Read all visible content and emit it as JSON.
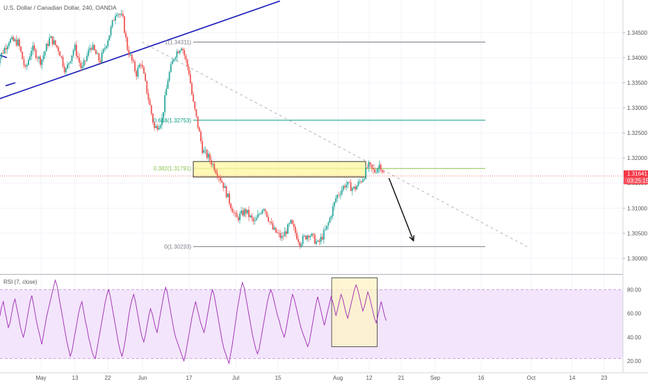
{
  "chart_data": {
    "type": "candlestick",
    "title": "U.S. Dollar / Canadian Dollar, 240, OANDA",
    "x_axis": {
      "labels": [
        "May",
        "13",
        "22",
        "Jun",
        "17",
        "Jul",
        "15",
        "Aug",
        "12",
        "21",
        "Sep",
        "16",
        "Oct",
        "14",
        "23"
      ]
    },
    "price_axis": {
      "ticks": [
        "1.34500",
        "1.34000",
        "1.33500",
        "1.33000",
        "1.32500",
        "1.32000",
        "1.31500",
        "1.31000",
        "1.30500",
        "1.30000"
      ],
      "tick_values": [
        1.345,
        1.34,
        1.335,
        1.33,
        1.325,
        1.32,
        1.315,
        1.31,
        1.305,
        1.3
      ],
      "range": [
        1.297,
        1.3515
      ]
    },
    "current_price": {
      "label": "1.31641",
      "value": 1.31641,
      "countdown": "03:25:15",
      "color": "#f23645"
    },
    "fib_levels": [
      {
        "ratio": 1,
        "price": 1.34311,
        "label": "1(1.34311)",
        "color": "#787b86"
      },
      {
        "ratio": 0.618,
        "price": 1.32753,
        "label": "0.618(1.32753)",
        "color": "#089981"
      },
      {
        "ratio": 0.382,
        "price": 1.31791,
        "label": "0.382(1.31791)",
        "color": "#8bc34a"
      },
      {
        "ratio": 0,
        "price": 1.30233,
        "label": "0(1.30233)",
        "color": "#787b86"
      }
    ],
    "resistance_zone": {
      "price_top": 1.3193,
      "price_bottom": 1.3162,
      "color": "#fff59d"
    },
    "price_path": [
      [
        -0.5,
        1.3384
      ],
      [
        0.3,
        1.3412
      ],
      [
        1.0,
        1.3435
      ],
      [
        2.0,
        1.343
      ],
      [
        2.8,
        1.3375
      ],
      [
        3.5,
        1.342
      ],
      [
        4.5,
        1.3392
      ],
      [
        5.5,
        1.344
      ],
      [
        6.5,
        1.3415
      ],
      [
        7.2,
        1.3372
      ],
      [
        8.2,
        1.3422
      ],
      [
        9.0,
        1.3375
      ],
      [
        10.0,
        1.3425
      ],
      [
        11.0,
        1.3392
      ],
      [
        12.0,
        1.3445
      ],
      [
        12.8,
        1.3495
      ],
      [
        13.5,
        1.3478
      ],
      [
        14.0,
        1.342
      ],
      [
        15.0,
        1.3368
      ],
      [
        15.5,
        1.3392
      ],
      [
        16.2,
        1.333
      ],
      [
        17.0,
        1.3258
      ],
      [
        17.8,
        1.3275
      ],
      [
        18.5,
        1.336
      ],
      [
        19.2,
        1.3405
      ],
      [
        20.0,
        1.3425
      ],
      [
        20.8,
        1.337
      ],
      [
        21.2,
        1.3315
      ],
      [
        21.8,
        1.3262
      ],
      [
        22.3,
        1.3215
      ],
      [
        23.0,
        1.32
      ],
      [
        23.7,
        1.3178
      ],
      [
        24.5,
        1.315
      ],
      [
        25.2,
        1.3115
      ],
      [
        26.0,
        1.3078
      ],
      [
        27.0,
        1.3095
      ],
      [
        28.0,
        1.307
      ],
      [
        29.0,
        1.3105
      ],
      [
        30.0,
        1.3058
      ],
      [
        31.0,
        1.304
      ],
      [
        32.0,
        1.307
      ],
      [
        33.0,
        1.3032
      ],
      [
        34.0,
        1.305
      ],
      [
        35.0,
        1.3028
      ],
      [
        36.0,
        1.3062
      ],
      [
        37.0,
        1.3122
      ],
      [
        38.0,
        1.3148
      ],
      [
        39.0,
        1.3138
      ],
      [
        40.0,
        1.3162
      ],
      [
        40.5,
        1.3185
      ],
      [
        41.2,
        1.3172
      ],
      [
        41.8,
        1.3188
      ],
      [
        42.3,
        1.3166
      ]
    ],
    "projection": {
      "start": [
        42.8,
        1.316
      ],
      "end": [
        45.5,
        1.3035
      ]
    },
    "trendline_start": [
      -4.5,
      1.329
    ],
    "trendline_end": [
      30.8,
      1.3513
    ],
    "fib_connector_start": [
      15.6,
      1.34311
    ],
    "fib_connector_end": [
      58.0,
      1.30233
    ],
    "rsi": {
      "label": "RSI (7, close)",
      "ticks": [
        "80.00",
        "60.00",
        "40.00",
        "20.00"
      ],
      "tick_values": [
        80,
        60,
        40,
        20
      ],
      "range": [
        10,
        92
      ],
      "band": [
        22,
        80
      ],
      "band_color": "#f3e5fc",
      "line_color": "#9c27b0",
      "highlight": {
        "x0": 36.5,
        "x1": 41.5,
        "top": 90,
        "bottom": 32,
        "color": "#fff3c4"
      },
      "values": [
        58,
        66,
        70,
        62,
        55,
        48,
        52,
        60,
        68,
        72,
        65,
        58,
        50,
        44,
        40,
        46,
        54,
        62,
        70,
        75,
        68,
        60,
        52,
        46,
        40,
        34,
        42,
        50,
        58,
        64,
        70,
        76,
        82,
        88,
        84,
        76,
        68,
        60,
        52,
        44,
        36,
        30,
        24,
        28,
        36,
        44,
        52,
        60,
        66,
        70,
        62,
        54,
        48,
        40,
        34,
        28,
        24,
        22,
        30,
        38,
        46,
        54,
        62,
        70,
        76,
        80,
        74,
        66,
        58,
        50,
        42,
        34,
        28,
        24,
        30,
        38,
        48,
        58,
        66,
        72,
        76,
        70,
        62,
        54,
        46,
        40,
        36,
        42,
        50,
        58,
        64,
        60,
        54,
        48,
        44,
        52,
        60,
        68,
        76,
        82,
        78,
        70,
        62,
        54,
        46,
        40,
        36,
        32,
        28,
        24,
        20,
        26,
        34,
        42,
        50,
        58,
        64,
        70,
        64,
        58,
        52,
        48,
        44,
        50,
        58,
        66,
        74,
        80,
        76,
        68,
        60,
        52,
        44,
        36,
        30,
        26,
        22,
        18,
        26,
        34,
        44,
        54,
        64,
        72,
        80,
        86,
        82,
        74,
        66,
        58,
        50,
        42,
        36,
        30,
        26,
        30,
        38,
        46,
        54,
        62,
        70,
        76,
        80,
        76,
        70,
        64,
        58,
        54,
        48,
        44,
        40,
        46,
        54,
        62,
        70,
        76,
        72,
        66,
        60,
        54,
        48,
        44,
        40,
        36,
        32,
        36,
        44,
        52,
        60,
        68,
        74,
        68,
        62,
        56,
        50,
        56,
        62,
        68,
        74,
        70,
        64,
        58,
        64,
        70,
        76,
        72,
        66,
        60,
        56,
        62,
        68,
        74,
        80,
        84,
        80,
        74,
        68,
        62,
        66,
        72,
        78,
        74,
        68,
        62,
        56,
        52,
        58,
        64,
        70,
        64,
        58,
        54
      ]
    }
  }
}
